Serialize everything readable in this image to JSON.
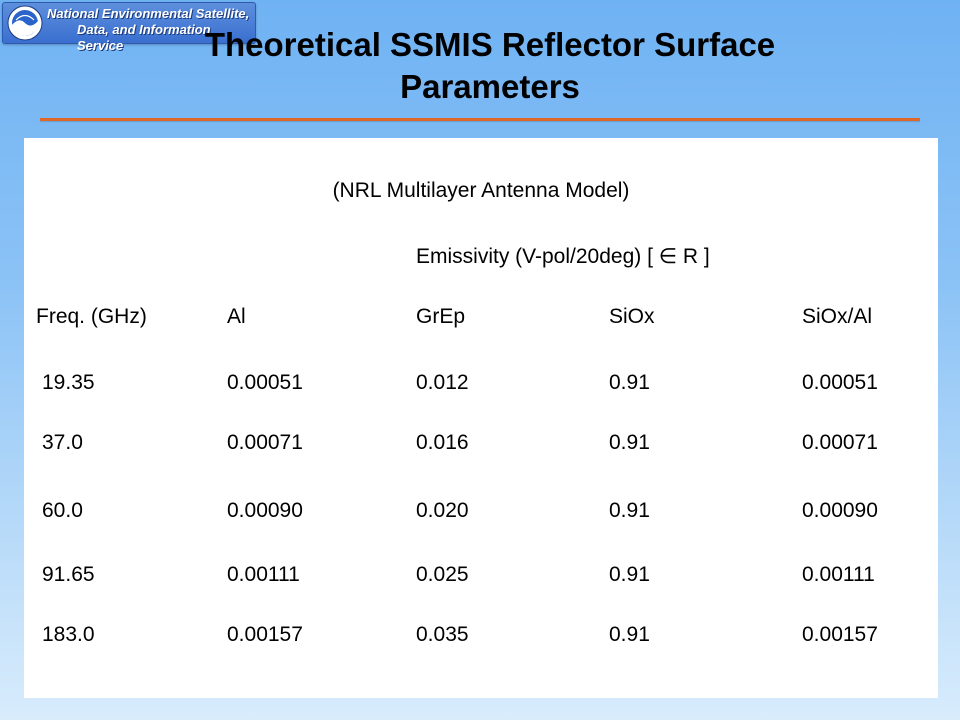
{
  "logo": {
    "line1": "National Environmental Satellite,",
    "line2": "Data, and Information Service",
    "emblem_text": "NOAA"
  },
  "title": {
    "line1": "Theoretical SSMIS Reflector Surface",
    "line2": "Parameters"
  },
  "table": {
    "subtitle": "(NRL Multilayer Antenna Model)",
    "group_header": "Emissivity (V-pol/20deg)  [ ∈ R ]",
    "columns": [
      "Freq. (GHz)",
      "Al",
      "GrEp",
      "SiOx",
      "SiOx/Al"
    ],
    "rows": [
      [
        "19.35",
        "0.00051",
        "0.012",
        "0.91",
        "0.00051"
      ],
      [
        "37.0",
        "0.00071",
        "0.016",
        "0.91",
        "0.00071"
      ],
      [
        "60.0",
        "0.00090",
        "0.020",
        "0.91",
        "0.00090"
      ],
      [
        "91.65",
        "0.00111",
        "0.025",
        "0.91",
        "0.00111"
      ],
      [
        "183.0",
        "0.00157",
        "0.035",
        "0.91",
        "0.00157"
      ]
    ]
  },
  "colors": {
    "background_top": "#6fb2f3",
    "background_bottom": "#d8ecfc",
    "title_rule": "#e0672a",
    "logo_blue": "#3a6fd0"
  },
  "icons": {
    "logo_emblem": "noaa-emblem-icon"
  }
}
